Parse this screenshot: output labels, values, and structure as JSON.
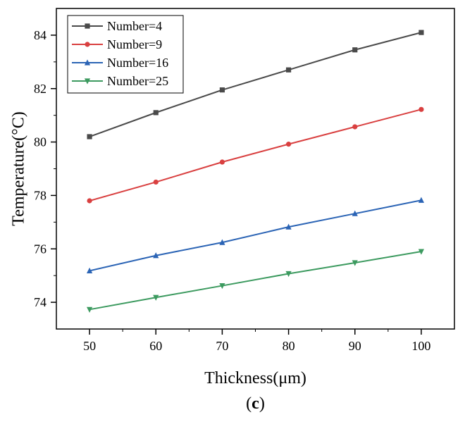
{
  "chart_data": {
    "type": "line",
    "title": "",
    "xlabel": "Thickness(μm)",
    "ylabel": "Temperature(°C)",
    "caption": "c",
    "x": [
      50,
      60,
      70,
      80,
      90,
      100
    ],
    "xlim": [
      45,
      105
    ],
    "ylim": [
      73,
      85
    ],
    "x_ticks": [
      50,
      60,
      70,
      80,
      90,
      100
    ],
    "y_ticks": [
      74,
      76,
      78,
      80,
      82,
      84
    ],
    "grid": false,
    "legend_position": "top-left",
    "series": [
      {
        "name": "Number=4",
        "color": "#4a4a4a",
        "marker": "square",
        "values": [
          80.2,
          81.1,
          81.95,
          82.7,
          83.45,
          84.1
        ]
      },
      {
        "name": "Number=9",
        "color": "#d94040",
        "marker": "circle",
        "values": [
          77.8,
          78.5,
          79.25,
          79.92,
          80.57,
          81.22
        ]
      },
      {
        "name": "Number=16",
        "color": "#2b64b5",
        "marker": "triangle-up",
        "values": [
          75.18,
          75.75,
          76.24,
          76.82,
          77.32,
          77.82
        ]
      },
      {
        "name": "Number=25",
        "color": "#3c9a5f",
        "marker": "triangle-down",
        "values": [
          73.73,
          74.18,
          74.62,
          75.07,
          75.48,
          75.9
        ]
      }
    ]
  }
}
